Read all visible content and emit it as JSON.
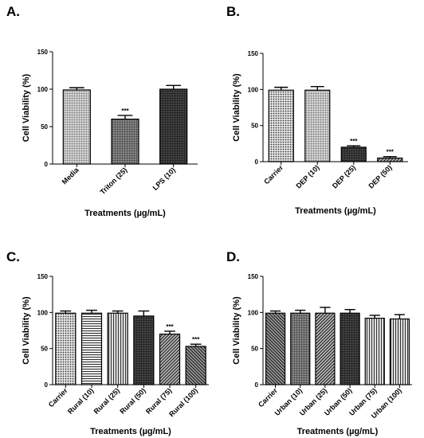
{
  "chart_data": [
    {
      "panel": "A.",
      "type": "bar",
      "ylabel": "Cell Viability (%)",
      "xlabel": "Treatments (µg/mL)",
      "ylim": [
        0,
        150
      ],
      "yticks": [
        0,
        50,
        100,
        150
      ],
      "categories": [
        "Media",
        "Triton (25)",
        "LPS (10)"
      ],
      "values": [
        99,
        60,
        100
      ],
      "errors": [
        3,
        5,
        5
      ],
      "significance": [
        "",
        "***",
        ""
      ],
      "patterns": [
        "grid-fine",
        "grid-dots",
        "dark-grid"
      ]
    },
    {
      "panel": "B.",
      "type": "bar",
      "ylabel": "Cell Viability (%)",
      "xlabel": "Treatments (µg/mL)",
      "ylim": [
        0,
        150
      ],
      "yticks": [
        0,
        50,
        100,
        150
      ],
      "categories": [
        "Carrier",
        "DEP (10)",
        "DEP (25)",
        "DEP (50)"
      ],
      "values": [
        99,
        99,
        20,
        5
      ],
      "errors": [
        4,
        5,
        2,
        2
      ],
      "significance": [
        "",
        "",
        "***",
        "***"
      ],
      "patterns": [
        "dots",
        "grid-fine",
        "dark-grid",
        "diag"
      ]
    },
    {
      "panel": "C.",
      "type": "bar",
      "ylabel": "Cell Viability (%)",
      "xlabel": "Treatments (µg/mL)",
      "ylim": [
        0,
        150
      ],
      "yticks": [
        0,
        50,
        100,
        150
      ],
      "categories": [
        "Carrier",
        "Rural (10)",
        "Rural (25)",
        "Rural (50)",
        "Rural (75)",
        "Rural (100)"
      ],
      "values": [
        99,
        99,
        99,
        95,
        70,
        53
      ],
      "errors": [
        3,
        4,
        3,
        7,
        4,
        3
      ],
      "significance": [
        "",
        "",
        "",
        "",
        "***",
        "***"
      ],
      "patterns": [
        "dots",
        "hlines",
        "vlines",
        "dark-grid",
        "diag",
        "diag2"
      ]
    },
    {
      "panel": "D.",
      "type": "bar",
      "ylabel": "Cell Viability (%)",
      "xlabel": "Treatments (µg/mL)",
      "ylim": [
        0,
        150
      ],
      "yticks": [
        0,
        50,
        100,
        150
      ],
      "categories": [
        "Carrier",
        "Urban (10)",
        "Urban (25)",
        "Urban (50)",
        "Urban (75)",
        "Urban (100)"
      ],
      "values": [
        99,
        99,
        99,
        99,
        92,
        91
      ],
      "errors": [
        3,
        4,
        8,
        5,
        4,
        6
      ],
      "significance": [
        "",
        "",
        "",
        "",
        "",
        ""
      ],
      "patterns": [
        "diag2",
        "grid-dots",
        "diag",
        "dark-grid",
        "vlines",
        "vlines"
      ]
    }
  ]
}
